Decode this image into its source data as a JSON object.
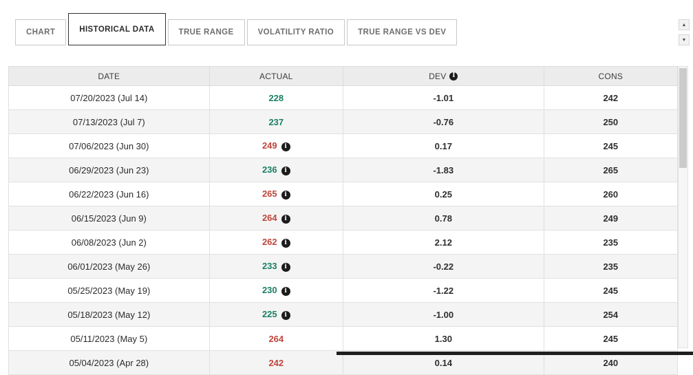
{
  "tabs": [
    {
      "label": "CHART",
      "active": false
    },
    {
      "label": "HISTORICAL DATA",
      "active": true
    },
    {
      "label": "TRUE RANGE",
      "active": false
    },
    {
      "label": "VOLATILITY RATIO",
      "active": false
    },
    {
      "label": "TRUE RANGE VS DEV",
      "active": false
    }
  ],
  "colors": {
    "green": "#1b7e66",
    "red": "#c0453b"
  },
  "table": {
    "columns": [
      "DATE",
      "ACTUAL",
      "DEV",
      "CONS"
    ],
    "rows": [
      {
        "date": "07/20/2023 (Jul 14)",
        "actual": "228",
        "color": "green",
        "info": false,
        "dev": "-1.01",
        "cons": "242"
      },
      {
        "date": "07/13/2023 (Jul 7)",
        "actual": "237",
        "color": "green",
        "info": false,
        "dev": "-0.76",
        "cons": "250"
      },
      {
        "date": "07/06/2023 (Jun 30)",
        "actual": "249",
        "color": "red",
        "info": true,
        "dev": "0.17",
        "cons": "245"
      },
      {
        "date": "06/29/2023 (Jun 23)",
        "actual": "236",
        "color": "green",
        "info": true,
        "dev": "-1.83",
        "cons": "265"
      },
      {
        "date": "06/22/2023 (Jun 16)",
        "actual": "265",
        "color": "red",
        "info": true,
        "dev": "0.25",
        "cons": "260"
      },
      {
        "date": "06/15/2023 (Jun 9)",
        "actual": "264",
        "color": "red",
        "info": true,
        "dev": "0.78",
        "cons": "249"
      },
      {
        "date": "06/08/2023 (Jun 2)",
        "actual": "262",
        "color": "red",
        "info": true,
        "dev": "2.12",
        "cons": "235"
      },
      {
        "date": "06/01/2023 (May 26)",
        "actual": "233",
        "color": "green",
        "info": true,
        "dev": "-0.22",
        "cons": "235"
      },
      {
        "date": "05/25/2023 (May 19)",
        "actual": "230",
        "color": "green",
        "info": true,
        "dev": "-1.22",
        "cons": "245"
      },
      {
        "date": "05/18/2023 (May 12)",
        "actual": "225",
        "color": "green",
        "info": true,
        "dev": "-1.00",
        "cons": "254"
      },
      {
        "date": "05/11/2023 (May 5)",
        "actual": "264",
        "color": "red",
        "info": false,
        "dev": "1.30",
        "cons": "245"
      },
      {
        "date": "05/04/2023 (Apr 28)",
        "actual": "242",
        "color": "red",
        "info": false,
        "dev": "0.14",
        "cons": "240"
      }
    ]
  },
  "scrollbar": {
    "up_arrow": "▲",
    "down_arrow": "▼"
  }
}
